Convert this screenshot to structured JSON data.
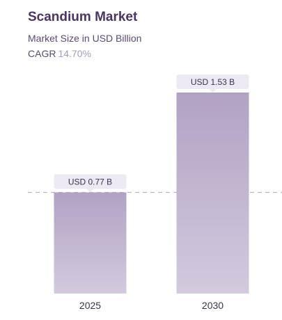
{
  "header": {
    "title": "Scandium Market",
    "subtitle": "Market Size in USD Billion",
    "cagr_label": "CAGR",
    "cagr_value": "14.70%"
  },
  "chart_data": {
    "type": "bar",
    "categories": [
      "2025",
      "2030"
    ],
    "values": [
      0.77,
      1.53
    ],
    "data_labels": [
      "USD 0.77 B",
      "USD 1.53 B"
    ],
    "title": "Scandium Market",
    "subtitle": "Market Size in USD Billion",
    "xlabel": "",
    "ylabel": "",
    "ylim": [
      0,
      1.53
    ],
    "grid": false,
    "reference_line_value": 0.77
  },
  "colors": {
    "bar_top": "#b1a2c4",
    "bar_bottom": "#d3cade",
    "label_bg": "#ede9f2",
    "dash": "#b8b0c4"
  }
}
